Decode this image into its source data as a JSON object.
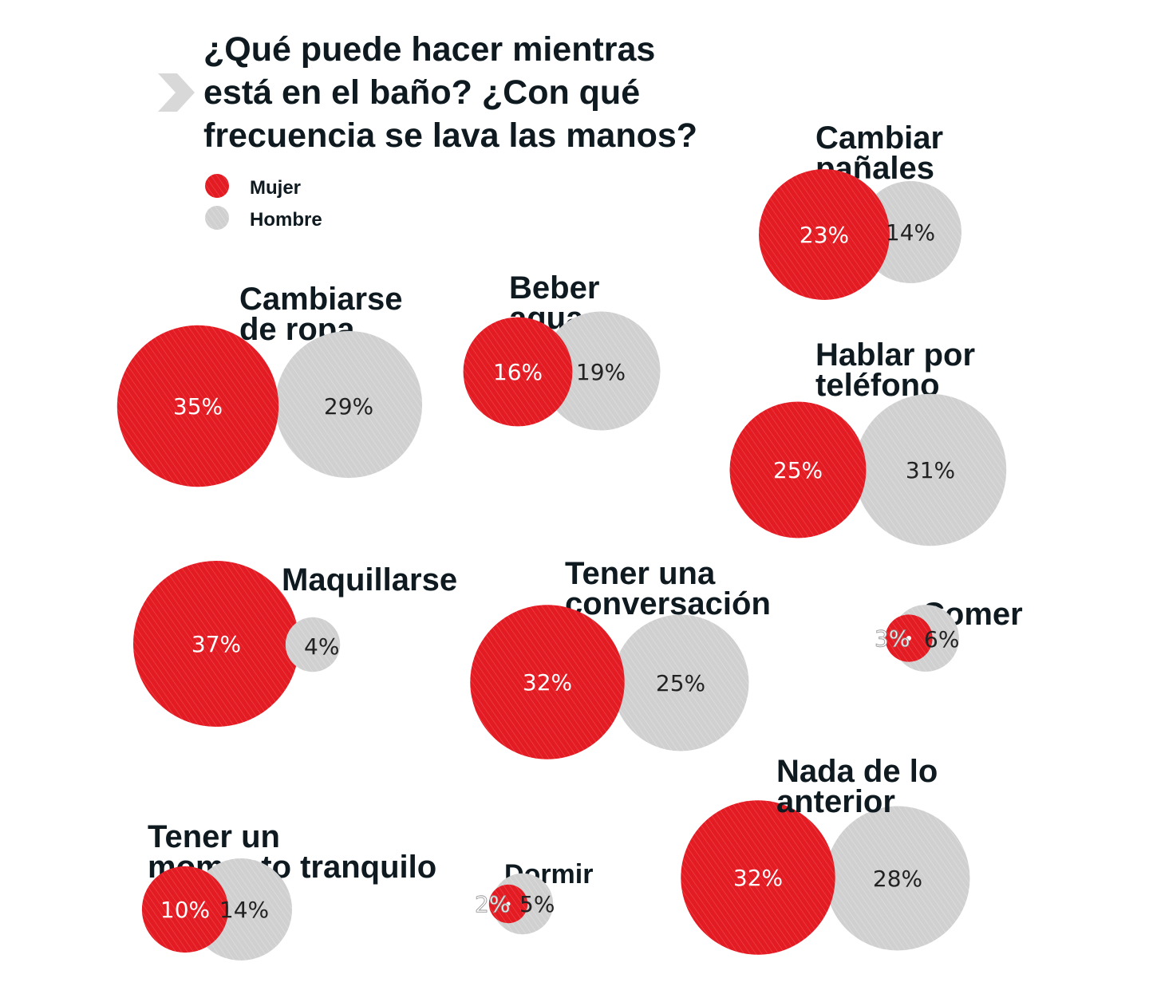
{
  "chart_data": {
    "type": "bubble",
    "title": [
      "¿Qué puede hacer mientras",
      "está en el baño? ¿Con qué",
      "frecuencia se lava las manos?"
    ],
    "legend": [
      {
        "name": "Mujer",
        "color": "#e31b23"
      },
      {
        "name": "Hombre",
        "color": "#d0d0d0"
      }
    ],
    "categories": [
      {
        "label": [
          "Cambiar",
          "pañales"
        ],
        "mujer": 23,
        "hombre": 14,
        "mujer_text": "23%",
        "hombre_text": "14%"
      },
      {
        "label": [
          "Cambiarse",
          "de ropa"
        ],
        "mujer": 35,
        "hombre": 29,
        "mujer_text": "35%",
        "hombre_text": "29%"
      },
      {
        "label": [
          "Beber",
          "agua"
        ],
        "mujer": 16,
        "hombre": 19,
        "mujer_text": "16%",
        "hombre_text": "19%"
      },
      {
        "label": [
          "Hablar por",
          "teléfono"
        ],
        "mujer": 25,
        "hombre": 31,
        "mujer_text": "25%",
        "hombre_text": "31%"
      },
      {
        "label": [
          "Maquillarse"
        ],
        "mujer": 37,
        "hombre": 4,
        "mujer_text": "37%",
        "hombre_text": "4%"
      },
      {
        "label": [
          "Tener una",
          "conversación"
        ],
        "mujer": 32,
        "hombre": 25,
        "mujer_text": "32%",
        "hombre_text": "25%"
      },
      {
        "label": [
          "Comer"
        ],
        "mujer": 3,
        "hombre": 6,
        "mujer_text": "3%",
        "hombre_text": "6%"
      },
      {
        "label": [
          "Nada de lo",
          "anterior"
        ],
        "mujer": 32,
        "hombre": 28,
        "mujer_text": "32%",
        "hombre_text": "28%"
      },
      {
        "label": [
          "Tener un",
          "momento tranquilo"
        ],
        "mujer": 10,
        "hombre": 14,
        "mujer_text": "10%",
        "hombre_text": "14%"
      },
      {
        "label": [
          "Dormir"
        ],
        "mujer": 2,
        "hombre": 5,
        "mujer_text": "2%",
        "hombre_text": "5%"
      }
    ],
    "colors": {
      "mujer": "#e31b23",
      "hombre": "#d0d0d0",
      "text": "#0e1a20",
      "arrow": "#d8d8d8"
    }
  }
}
